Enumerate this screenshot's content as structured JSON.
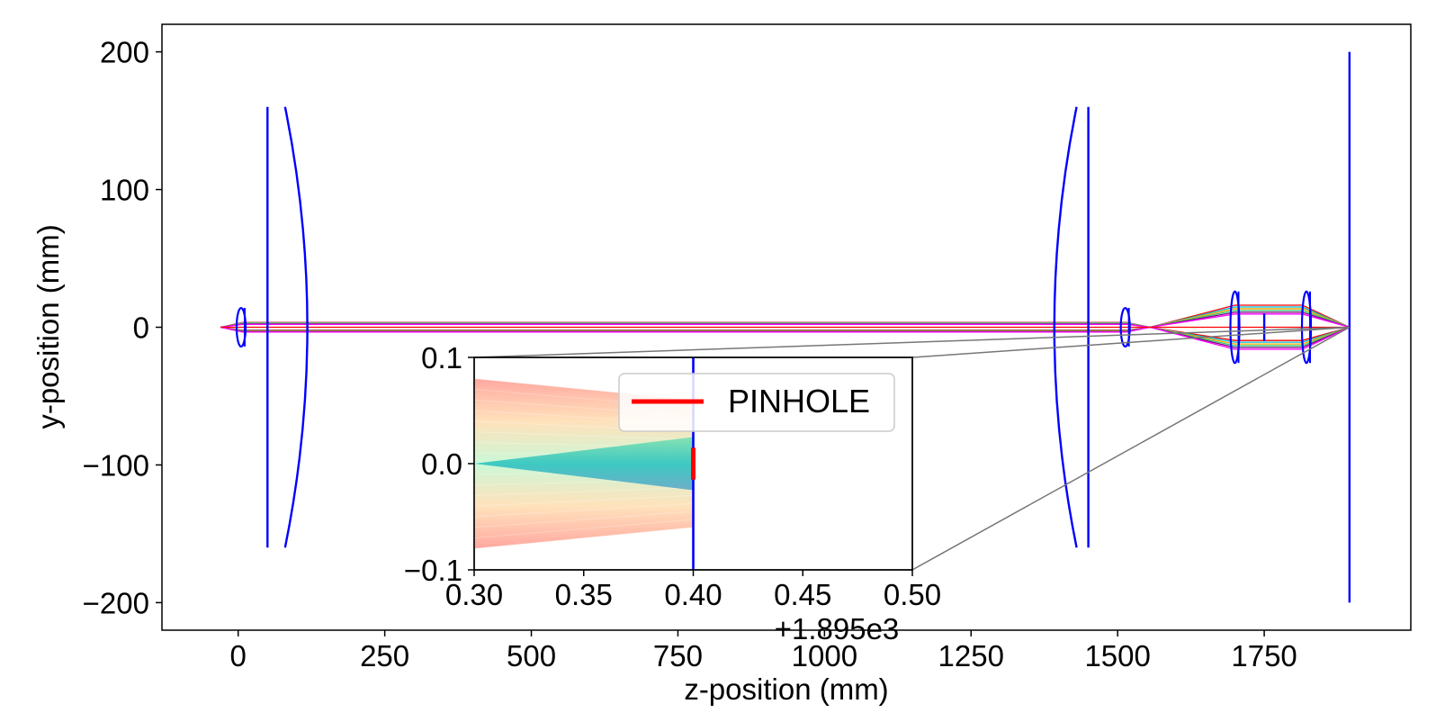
{
  "chart_data": {
    "type": "line",
    "description_elements": "optical ray-trace layout",
    "main": {
      "xlabel": "z-position (mm)",
      "ylabel": "y-position (mm)",
      "xlim": [
        -130,
        2000
      ],
      "ylim": [
        -220,
        220
      ],
      "xticks": [
        0,
        250,
        500,
        750,
        1000,
        1250,
        1500,
        1750
      ],
      "xtick_labels": [
        "0",
        "250",
        "500",
        "750",
        "1000",
        "1250",
        "1500",
        "1750"
      ],
      "yticks": [
        -200,
        -100,
        0,
        100,
        200
      ],
      "ytick_labels": [
        "−200",
        "−100",
        "0",
        "100",
        "200"
      ],
      "grid": false,
      "lens_color": "#0000ff",
      "ray_colors": [
        "#ff0000",
        "#00bcd4",
        "#ffa500",
        "#2ecc71",
        "#800080",
        "#ff00ff"
      ],
      "elements": [
        {
          "kind": "small-lens",
          "z": 5,
          "halfheight": 14
        },
        {
          "kind": "plane",
          "z": 50,
          "halfheight": 160
        },
        {
          "kind": "curved",
          "z_edge": 80,
          "z_center": 118,
          "halfheight": 160
        },
        {
          "kind": "curved",
          "z_edge": 1430,
          "z_center": 1392,
          "halfheight": 160
        },
        {
          "kind": "plane",
          "z": 1450,
          "halfheight": 160
        },
        {
          "kind": "small-lens",
          "z": 1513,
          "halfheight": 14
        },
        {
          "kind": "small-lens",
          "z": 1700,
          "halfheight": 26
        },
        {
          "kind": "plane",
          "z": 1750,
          "halfheight": 10
        },
        {
          "kind": "small-lens",
          "z": 1822,
          "halfheight": 26
        },
        {
          "kind": "plane",
          "z": 1895.4,
          "halfheight": 200
        }
      ],
      "ray_path_z": [
        -30,
        8,
        1515,
        1555,
        1700,
        1815,
        1895.4
      ],
      "ray_path_y": [
        0,
        3.5,
        3.5,
        0,
        16,
        16,
        0
      ]
    },
    "inset": {
      "xlim": [
        0.3,
        0.5
      ],
      "ylim": [
        -0.1,
        0.1
      ],
      "xticks": [
        0.3,
        0.35,
        0.4,
        0.45,
        0.5
      ],
      "xtick_labels": [
        "0.30",
        "0.35",
        "0.40",
        "0.45",
        "0.50"
      ],
      "yticks": [
        -0.1,
        0.0,
        0.1
      ],
      "ytick_labels": [
        "−0.1",
        "0.0",
        "0.1"
      ],
      "offset_label": "+1.895e3",
      "detector_x": 0.4,
      "pinhole_halfheight": 0.015,
      "outer_fan": {
        "left_y": [
          -0.08,
          0.08
        ],
        "right_y": [
          -0.06,
          0.06
        ]
      },
      "inner_fan": {
        "left_y": [
          0,
          0
        ],
        "right_y": [
          -0.025,
          0.025
        ]
      }
    },
    "legend": {
      "entries": [
        {
          "name": "PINHOLE",
          "color": "#ff0000"
        }
      ],
      "placement": "inside inset, upper center"
    }
  }
}
